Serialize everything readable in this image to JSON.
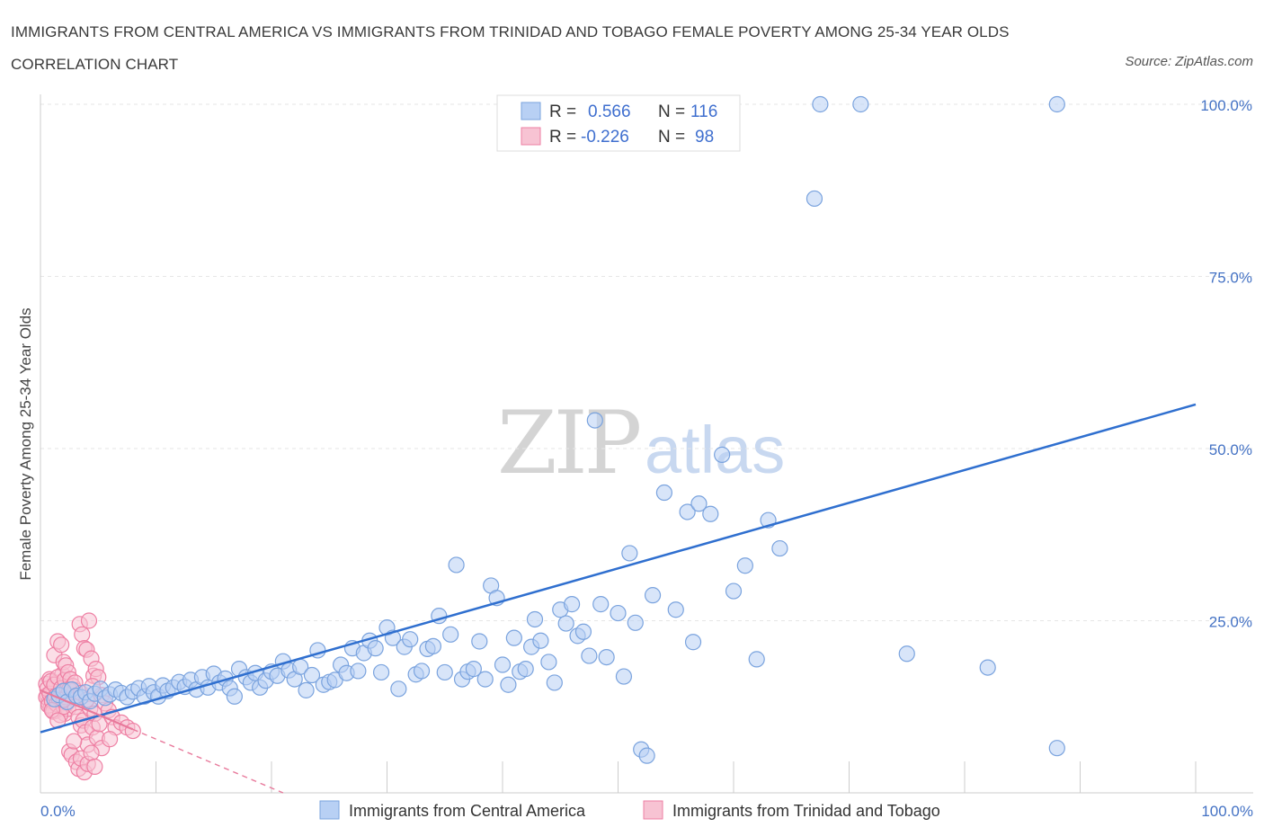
{
  "title": "IMMIGRANTS FROM CENTRAL AMERICA VS IMMIGRANTS FROM TRINIDAD AND TOBAGO FEMALE POVERTY AMONG 25-34 YEAR OLDS CORRELATION CHART",
  "source": "Source: ZipAtlas.com",
  "watermark": {
    "zip": "ZIP",
    "atlas": "atlas"
  },
  "legend_top": [
    {
      "r_label": "R =",
      "r_value": "0.566",
      "n_label": "N =",
      "n_value": "116"
    },
    {
      "r_label": "R =",
      "r_value": "-0.226",
      "n_label": "N =",
      "n_value": "98"
    }
  ],
  "colors": {
    "blue_fill": "#b8d0f4",
    "blue_stroke": "#7aa3de",
    "blue_line": "#2f6fcf",
    "pink_fill": "#f7c3d3",
    "pink_stroke": "#ee7fa3",
    "pink_line": "#e87a9c",
    "grid": "#e6e6e6",
    "tick_text": "#4472c4"
  },
  "chart_data": {
    "type": "scatter",
    "title": "IMMIGRANTS FROM CENTRAL AMERICA VS IMMIGRANTS FROM TRINIDAD AND TOBAGO FEMALE POVERTY AMONG 25-34 YEAR OLDS CORRELATION CHART",
    "xlabel": "",
    "ylabel": "Female Poverty Among 25-34 Year Olds",
    "xlim": [
      0,
      100
    ],
    "ylim": [
      0,
      100
    ],
    "x_tick_labels": [
      "0.0%",
      "100.0%"
    ],
    "y_ticks": [
      25,
      50,
      75,
      100
    ],
    "y_tick_labels": [
      "25.0%",
      "50.0%",
      "75.0%",
      "100.0%"
    ],
    "grid": true,
    "legend_position": "bottom",
    "series": [
      {
        "name": "Immigrants from Central America",
        "r": 0.566,
        "n": 116,
        "trend": {
          "x": [
            0,
            100
          ],
          "y": [
            8.8,
            56.4
          ]
        },
        "points": [
          [
            1.2,
            13.6
          ],
          [
            1.6,
            14.2
          ],
          [
            2.0,
            14.8
          ],
          [
            2.3,
            13.2
          ],
          [
            2.7,
            15.0
          ],
          [
            3.1,
            14.1
          ],
          [
            3.5,
            13.9
          ],
          [
            3.9,
            14.6
          ],
          [
            4.3,
            13.3
          ],
          [
            4.7,
            14.4
          ],
          [
            5.2,
            15.1
          ],
          [
            5.6,
            13.8
          ],
          [
            6.0,
            14.3
          ],
          [
            6.5,
            15.0
          ],
          [
            7.0,
            14.5
          ],
          [
            7.5,
            13.9
          ],
          [
            8.0,
            14.7
          ],
          [
            8.5,
            15.2
          ],
          [
            9.0,
            14.0
          ],
          [
            9.4,
            15.5
          ],
          [
            9.8,
            14.6
          ],
          [
            10.2,
            14.0
          ],
          [
            10.6,
            15.6
          ],
          [
            11.0,
            14.8
          ],
          [
            11.5,
            15.3
          ],
          [
            12.0,
            16.1
          ],
          [
            12.5,
            15.4
          ],
          [
            13.0,
            16.4
          ],
          [
            13.5,
            15.0
          ],
          [
            14.0,
            16.8
          ],
          [
            14.5,
            15.3
          ],
          [
            15.0,
            17.3
          ],
          [
            15.5,
            16.0
          ],
          [
            16.0,
            16.6
          ],
          [
            16.4,
            15.2
          ],
          [
            16.8,
            14.0
          ],
          [
            17.2,
            18.0
          ],
          [
            17.8,
            16.8
          ],
          [
            18.2,
            16.0
          ],
          [
            18.6,
            17.4
          ],
          [
            19.0,
            15.3
          ],
          [
            19.5,
            16.3
          ],
          [
            20.0,
            17.6
          ],
          [
            20.5,
            17.0
          ],
          [
            21.0,
            19.1
          ],
          [
            21.5,
            17.8
          ],
          [
            22.0,
            16.5
          ],
          [
            22.5,
            18.3
          ],
          [
            23.0,
            14.9
          ],
          [
            23.5,
            17.1
          ],
          [
            24.0,
            20.7
          ],
          [
            24.5,
            15.7
          ],
          [
            25.0,
            16.1
          ],
          [
            25.5,
            16.4
          ],
          [
            26.0,
            18.6
          ],
          [
            26.5,
            17.4
          ],
          [
            27.0,
            21.0
          ],
          [
            27.5,
            17.7
          ],
          [
            28.0,
            20.3
          ],
          [
            28.5,
            22.1
          ],
          [
            29.0,
            21.0
          ],
          [
            29.5,
            17.5
          ],
          [
            30.0,
            24.0
          ],
          [
            30.5,
            22.5
          ],
          [
            31.0,
            15.1
          ],
          [
            31.5,
            21.2
          ],
          [
            32.0,
            22.3
          ],
          [
            32.5,
            17.2
          ],
          [
            33.0,
            17.7
          ],
          [
            33.5,
            20.9
          ],
          [
            34.0,
            21.3
          ],
          [
            34.5,
            25.7
          ],
          [
            35.0,
            17.5
          ],
          [
            35.5,
            23.0
          ],
          [
            36.0,
            33.1
          ],
          [
            36.5,
            16.5
          ],
          [
            37.0,
            17.6
          ],
          [
            37.5,
            18.0
          ],
          [
            38.0,
            22.0
          ],
          [
            38.5,
            16.5
          ],
          [
            39.0,
            30.1
          ],
          [
            39.5,
            28.3
          ],
          [
            40.0,
            18.6
          ],
          [
            40.5,
            15.7
          ],
          [
            41.0,
            22.5
          ],
          [
            41.5,
            17.6
          ],
          [
            42.0,
            18.0
          ],
          [
            42.5,
            21.2
          ],
          [
            42.8,
            25.2
          ],
          [
            43.3,
            22.1
          ],
          [
            44.0,
            19.0
          ],
          [
            44.5,
            16.0
          ],
          [
            45.0,
            26.6
          ],
          [
            45.5,
            24.6
          ],
          [
            46.0,
            27.4
          ],
          [
            46.5,
            22.8
          ],
          [
            47.0,
            23.4
          ],
          [
            47.5,
            19.9
          ],
          [
            48.0,
            54.1
          ],
          [
            48.5,
            27.4
          ],
          [
            49.0,
            19.7
          ],
          [
            50.0,
            26.1
          ],
          [
            50.5,
            16.9
          ],
          [
            51.0,
            34.8
          ],
          [
            51.5,
            24.7
          ],
          [
            52.0,
            6.3
          ],
          [
            52.5,
            5.4
          ],
          [
            53.0,
            28.7
          ],
          [
            54.0,
            43.6
          ],
          [
            55.0,
            26.6
          ],
          [
            56.0,
            40.8
          ],
          [
            56.5,
            21.9
          ],
          [
            57.0,
            42.0
          ],
          [
            58.0,
            40.5
          ],
          [
            59.0,
            49.1
          ],
          [
            60.0,
            29.3
          ],
          [
            61.0,
            33.0
          ],
          [
            62.0,
            19.4
          ],
          [
            63.0,
            39.6
          ],
          [
            64.0,
            35.5
          ],
          [
            67.0,
            86.3
          ],
          [
            67.5,
            100.0
          ],
          [
            71.0,
            100.0
          ],
          [
            75.0,
            20.2
          ],
          [
            82.0,
            18.2
          ],
          [
            88.0,
            100.0
          ],
          [
            88.0,
            6.5
          ]
        ]
      },
      {
        "name": "Immigrants from Trinidad and Tobago",
        "r": -0.226,
        "n": 98,
        "trend": {
          "x": [
            0,
            21
          ],
          "y": [
            14.9,
            0
          ],
          "solid_until_x": 8
        },
        "points": [
          [
            0.5,
            15.8
          ],
          [
            0.6,
            14.2
          ],
          [
            0.7,
            13.1
          ],
          [
            0.8,
            16.5
          ],
          [
            0.9,
            12.4
          ],
          [
            1.0,
            14.7
          ],
          [
            1.1,
            15.3
          ],
          [
            1.2,
            13.6
          ],
          [
            1.3,
            11.9
          ],
          [
            1.4,
            16.0
          ],
          [
            1.5,
            14.1
          ],
          [
            1.6,
            12.8
          ],
          [
            1.7,
            15.6
          ],
          [
            1.8,
            13.3
          ],
          [
            1.9,
            17.2
          ],
          [
            2.0,
            14.5
          ],
          [
            2.1,
            11.5
          ],
          [
            2.2,
            15.9
          ],
          [
            2.3,
            13.0
          ],
          [
            2.4,
            12.2
          ],
          [
            0.5,
            13.9
          ],
          [
            0.6,
            15.1
          ],
          [
            0.7,
            12.7
          ],
          [
            0.8,
            14.4
          ],
          [
            0.9,
            16.2
          ],
          [
            1.0,
            13.3
          ],
          [
            1.1,
            11.8
          ],
          [
            1.2,
            15.7
          ],
          [
            1.3,
            14.0
          ],
          [
            1.4,
            12.9
          ],
          [
            1.5,
            16.8
          ],
          [
            1.6,
            13.7
          ],
          [
            1.7,
            11.3
          ],
          [
            1.8,
            15.2
          ],
          [
            1.9,
            14.6
          ],
          [
            2.0,
            12.5
          ],
          [
            2.1,
            16.4
          ],
          [
            2.2,
            13.9
          ],
          [
            2.3,
            15.0
          ],
          [
            2.4,
            14.3
          ],
          [
            1.2,
            20.0
          ],
          [
            1.5,
            22.0
          ],
          [
            1.8,
            21.5
          ],
          [
            2.0,
            19.0
          ],
          [
            2.2,
            18.5
          ],
          [
            2.4,
            17.5
          ],
          [
            2.6,
            16.5
          ],
          [
            2.8,
            15.5
          ],
          [
            3.0,
            14.9
          ],
          [
            3.2,
            13.8
          ],
          [
            3.4,
            24.5
          ],
          [
            3.6,
            23.0
          ],
          [
            3.8,
            21.0
          ],
          [
            4.0,
            20.8
          ],
          [
            4.2,
            25.0
          ],
          [
            4.4,
            19.5
          ],
          [
            4.6,
            17.0
          ],
          [
            4.8,
            18.0
          ],
          [
            3.0,
            12.5
          ],
          [
            3.3,
            11.0
          ],
          [
            3.5,
            9.8
          ],
          [
            3.7,
            10.5
          ],
          [
            3.9,
            8.8
          ],
          [
            4.1,
            7.0
          ],
          [
            4.3,
            12.2
          ],
          [
            4.5,
            9.5
          ],
          [
            4.7,
            11.5
          ],
          [
            4.9,
            8.0
          ],
          [
            5.1,
            10.0
          ],
          [
            5.3,
            6.5
          ],
          [
            2.5,
            6.0
          ],
          [
            2.7,
            5.5
          ],
          [
            2.9,
            7.5
          ],
          [
            3.1,
            4.5
          ],
          [
            3.3,
            3.5
          ],
          [
            3.5,
            5.0
          ],
          [
            3.8,
            3.0
          ],
          [
            4.1,
            4.2
          ],
          [
            4.4,
            5.8
          ],
          [
            4.7,
            3.8
          ],
          [
            5.0,
            16.8
          ],
          [
            5.3,
            14.2
          ],
          [
            5.6,
            13.0
          ],
          [
            5.9,
            12.0
          ],
          [
            6.2,
            11.0
          ],
          [
            6.5,
            9.5
          ],
          [
            7.0,
            10.2
          ],
          [
            7.5,
            9.5
          ],
          [
            6.0,
            7.8
          ],
          [
            8.0,
            9.0
          ],
          [
            1.0,
            12.0
          ],
          [
            1.5,
            10.5
          ],
          [
            2.0,
            13.5
          ],
          [
            2.5,
            15.0
          ],
          [
            3.0,
            16.0
          ],
          [
            3.5,
            14.5
          ],
          [
            4.0,
            13.5
          ],
          [
            4.5,
            15.5
          ]
        ]
      }
    ]
  }
}
